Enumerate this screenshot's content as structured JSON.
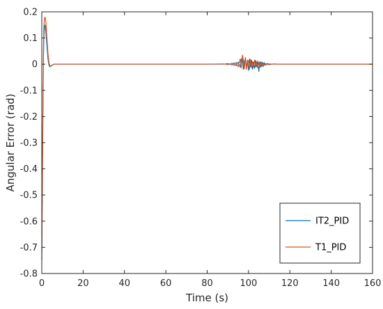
{
  "chart_data": {
    "type": "line",
    "title": "",
    "xlabel": "Time (s)",
    "ylabel": "Angular Error (rad)",
    "xlim": [
      0,
      160
    ],
    "ylim": [
      -0.8,
      0.2
    ],
    "xticks": [
      0,
      20,
      40,
      60,
      80,
      100,
      120,
      140,
      160
    ],
    "yticks": [
      -0.8,
      -0.7,
      -0.6,
      -0.5,
      -0.4,
      -0.3,
      -0.2,
      -0.1,
      0,
      0.1,
      0.2
    ],
    "xtick_labels": [
      "0",
      "20",
      "40",
      "60",
      "80",
      "100",
      "120",
      "140",
      "160"
    ],
    "ytick_labels": [
      "-0.8",
      "-0.7",
      "-0.6",
      "-0.5",
      "-0.4",
      "-0.3",
      "-0.2",
      "-0.1",
      "0",
      "0.1",
      "0.2"
    ],
    "grid": false,
    "legend_position": "bottom-right",
    "series": [
      {
        "name": "IT2_PID",
        "color": "#0072BD",
        "x": [
          0,
          0.2,
          0.5,
          0.8,
          1.0,
          1.3,
          1.6,
          2.0,
          2.5,
          3.0,
          3.5,
          4.0,
          4.5,
          5.0,
          6.0,
          7.0,
          8.0,
          10.0,
          20.0,
          40.0,
          60.0,
          80.0,
          88.0,
          90.0,
          92.0,
          93.0,
          94.0,
          95.0,
          96.0,
          96.5,
          97.0,
          97.5,
          98.0,
          98.5,
          99.0,
          99.5,
          100.0,
          100.5,
          101.0,
          101.5,
          102.0,
          102.5,
          103.0,
          103.5,
          104.0,
          104.5,
          105.0,
          105.5,
          106.0,
          106.5,
          107.0,
          107.5,
          108.0,
          109.0,
          110.0,
          112.0,
          115.0,
          120.0,
          140.0,
          160.0
        ],
        "y": [
          -0.75,
          -0.55,
          -0.25,
          0.02,
          0.1,
          0.14,
          0.15,
          0.12,
          0.07,
          0.02,
          -0.005,
          -0.01,
          -0.008,
          -0.004,
          0.0,
          0.0,
          0.0,
          0.0,
          0.0,
          0.0,
          0.0,
          0.0,
          0.0,
          0.002,
          -0.003,
          0.005,
          -0.006,
          0.008,
          -0.012,
          0.018,
          0.025,
          -0.02,
          0.01,
          0.022,
          -0.015,
          0.012,
          -0.024,
          0.02,
          -0.01,
          0.015,
          -0.02,
          0.008,
          -0.016,
          0.014,
          -0.01,
          0.012,
          -0.028,
          0.01,
          -0.012,
          0.008,
          -0.01,
          0.006,
          -0.004,
          0.003,
          -0.002,
          0.001,
          0.0,
          0.0,
          0.0,
          0.0
        ]
      },
      {
        "name": "T1_PID",
        "color": "#D95319",
        "x": [
          0,
          0.2,
          0.5,
          0.8,
          1.0,
          1.3,
          1.6,
          2.0,
          2.5,
          3.0,
          3.5,
          4.0,
          4.5,
          5.0,
          6.0,
          7.0,
          8.0,
          10.0,
          20.0,
          40.0,
          60.0,
          80.0,
          88.0,
          90.0,
          92.0,
          93.0,
          94.0,
          95.0,
          96.0,
          96.5,
          97.0,
          97.5,
          98.0,
          98.5,
          99.0,
          99.5,
          100.0,
          100.5,
          101.0,
          101.5,
          102.0,
          102.5,
          103.0,
          103.5,
          104.0,
          104.5,
          105.0,
          105.5,
          106.0,
          106.5,
          107.0,
          107.5,
          108.0,
          109.0,
          110.0,
          112.0,
          115.0,
          120.0,
          140.0,
          160.0
        ],
        "y": [
          -0.72,
          -0.5,
          -0.2,
          0.06,
          0.14,
          0.175,
          0.18,
          0.16,
          0.1,
          0.04,
          0.005,
          -0.008,
          -0.007,
          -0.003,
          0.0,
          0.0,
          0.0,
          0.0,
          0.0,
          0.0,
          0.0,
          0.0,
          0.001,
          -0.002,
          0.004,
          -0.005,
          0.007,
          -0.01,
          0.02,
          -0.015,
          0.035,
          0.015,
          -0.018,
          0.026,
          -0.02,
          0.016,
          0.012,
          -0.02,
          0.018,
          -0.014,
          0.01,
          -0.012,
          0.016,
          -0.01,
          0.008,
          -0.015,
          0.006,
          -0.01,
          0.007,
          -0.006,
          0.005,
          -0.004,
          0.003,
          -0.002,
          0.001,
          0.0,
          0.0,
          0.0,
          0.0,
          0.0
        ]
      }
    ]
  }
}
